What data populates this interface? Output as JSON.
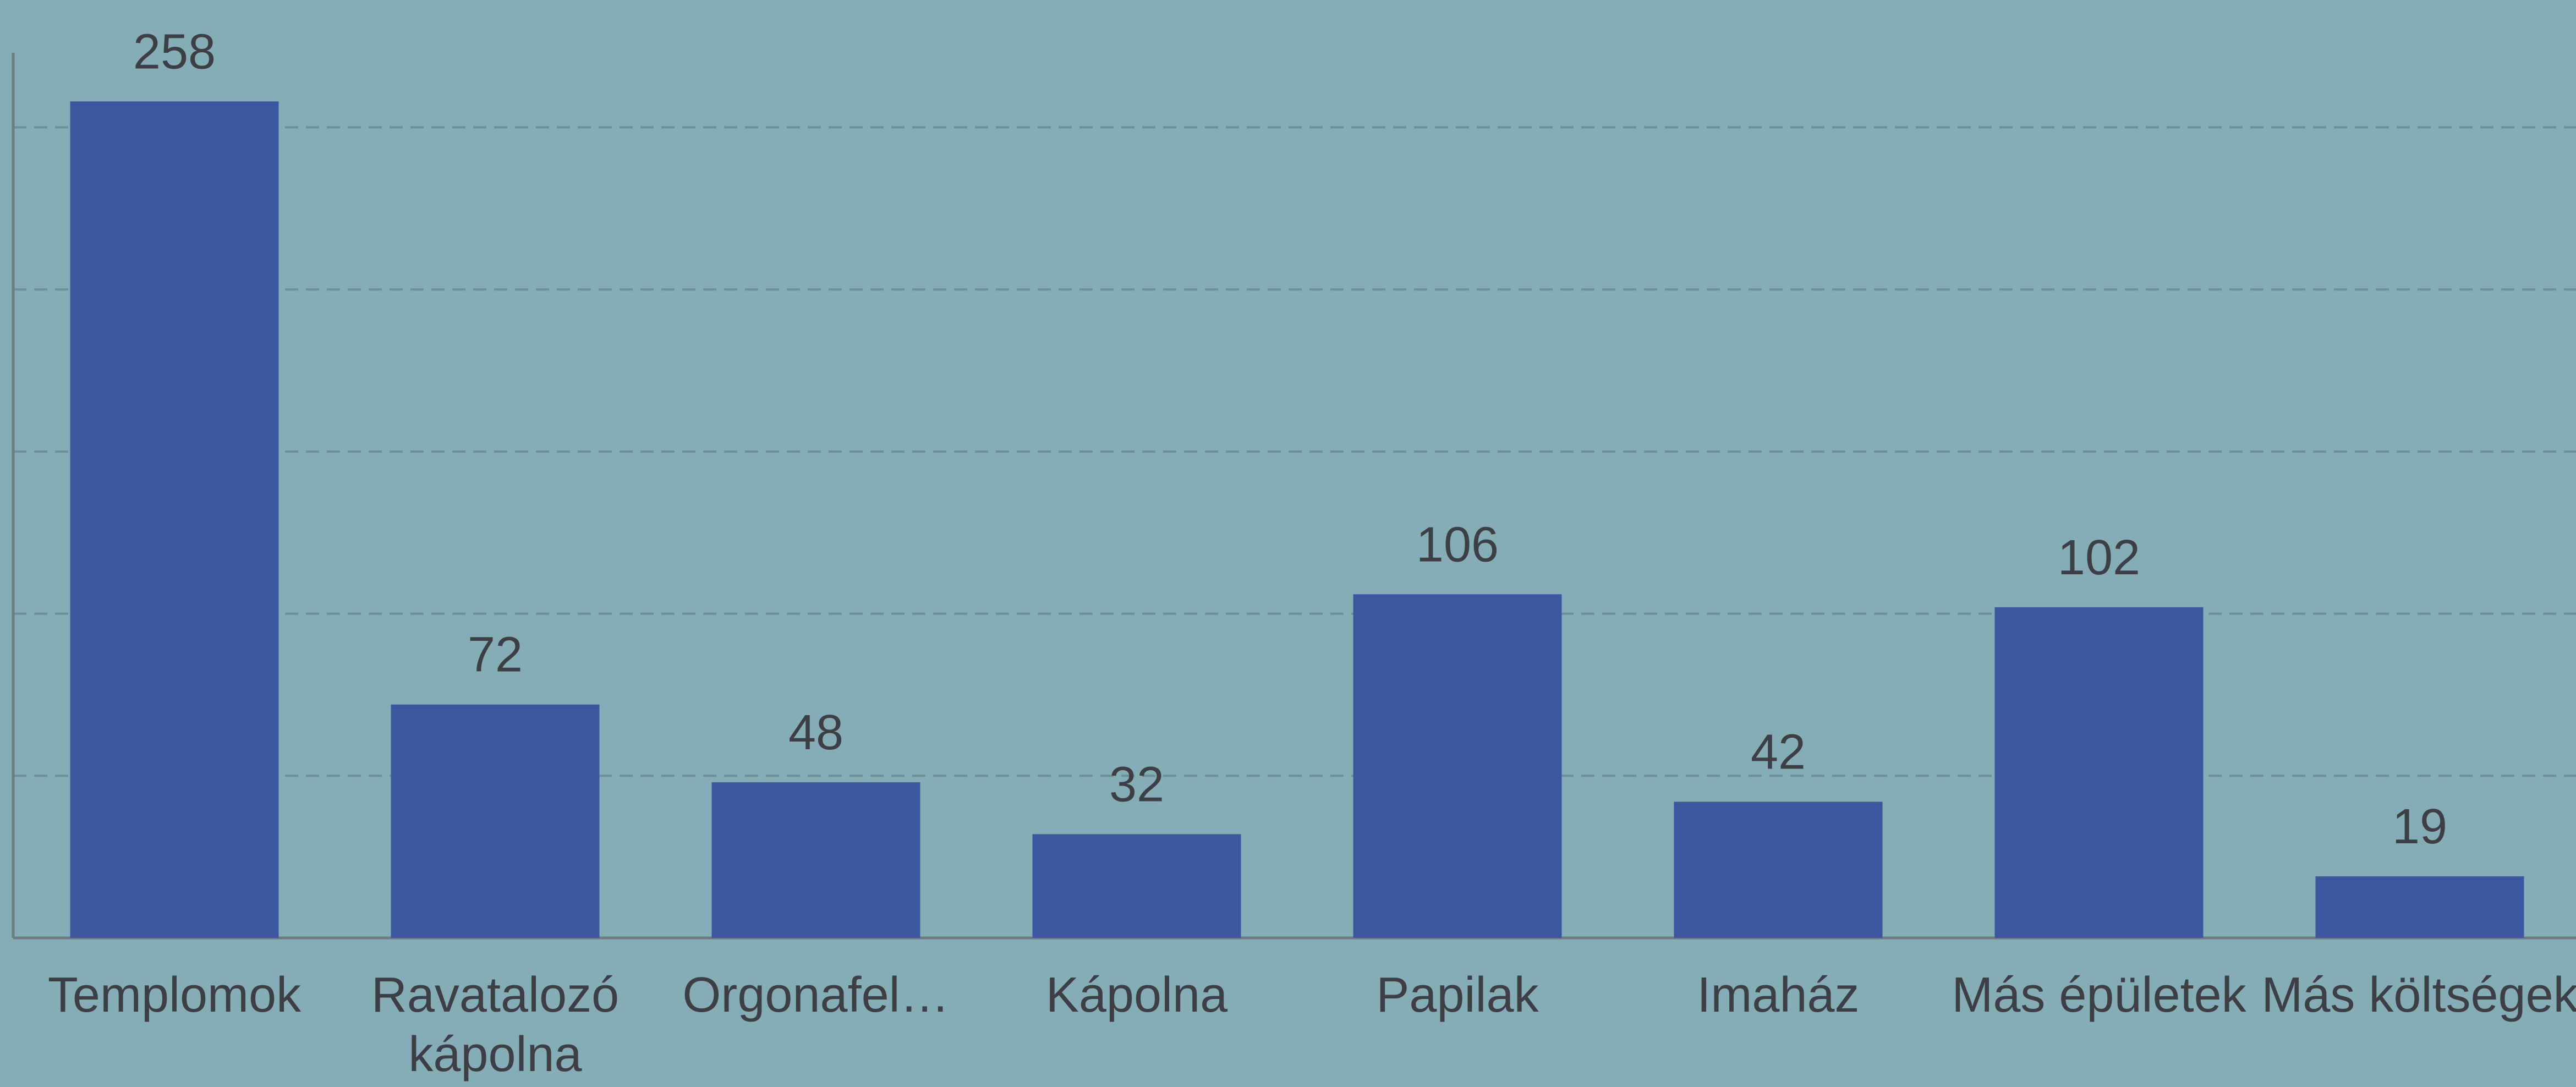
{
  "chart_data": {
    "type": "bar",
    "categories": [
      "Templomok",
      "Ravatalozó kápolna",
      "Orgonafel…",
      "Kápolna",
      "Papilak",
      "Imaház",
      "Más épületek",
      "Más költségek"
    ],
    "values": [
      258,
      72,
      48,
      32,
      106,
      42,
      102,
      19
    ],
    "color": "#3b57a0",
    "ylim": [
      0,
      273
    ],
    "yticks": [
      0,
      50,
      100,
      150,
      200,
      250
    ],
    "grid": true
  }
}
